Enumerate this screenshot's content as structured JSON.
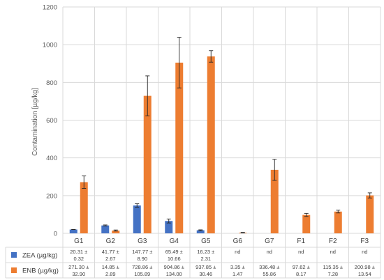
{
  "chart_data": {
    "type": "bar",
    "ylabel": "Contamination [µg/kg]",
    "ylim": [
      0,
      1200
    ],
    "yticks": [
      0,
      200,
      400,
      600,
      800,
      1000,
      1200
    ],
    "categories": [
      "G1",
      "G2",
      "G3",
      "G4",
      "G5",
      "G6",
      "G7",
      "F1",
      "F2",
      "F3"
    ],
    "series": [
      {
        "name": "ZEA (µg/kg)",
        "color": "#4472C4",
        "values": [
          20.31,
          41.77,
          147.77,
          65.49,
          16.23,
          null,
          null,
          null,
          null,
          null
        ],
        "errors": [
          0.32,
          2.67,
          8.9,
          10.66,
          2.31,
          null,
          null,
          null,
          null,
          null
        ],
        "table_top": [
          "20.31 ±",
          "41.77 ±",
          "147.77 ±",
          "65.49 ±",
          "16.23 ±",
          "nd",
          "nd",
          "nd",
          "nd",
          "nd"
        ],
        "table_bottom": [
          "0.32",
          "2.67",
          "8.90",
          "10.66",
          "2.31",
          "",
          "",
          "",
          "",
          ""
        ]
      },
      {
        "name": "ENB (µg/kg)",
        "color": "#ED7D31",
        "values": [
          271.3,
          14.85,
          728.86,
          904.86,
          937.85,
          3.35,
          336.48,
          97.62,
          115.35,
          200.98
        ],
        "errors": [
          32.9,
          2.89,
          105.89,
          134.0,
          30.46,
          1.47,
          55.86,
          8.17,
          7.28,
          13.54
        ],
        "table_top": [
          "271.30 ±",
          "14.85 ±",
          "728.86 ±",
          "904.86 ±",
          "937.85 ±",
          "3.35 ±",
          "336.48 ±",
          "97.62 ±",
          "115.35 ±",
          "200.98 ±"
        ],
        "table_bottom": [
          "32.90",
          "2.89",
          "105.89",
          "134.00",
          "30.46",
          "1.47",
          "55.86",
          "8.17",
          "7.28",
          "13.54"
        ]
      }
    ]
  }
}
